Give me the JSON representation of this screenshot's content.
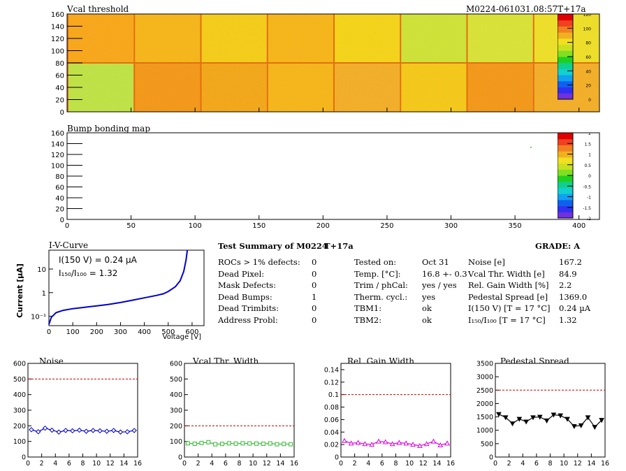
{
  "vcal_map": {
    "title": "Vcal threshold",
    "module_id": "M0224-061031.08:57T+17a",
    "xticks": [
      "0",
      "50",
      "100",
      "150",
      "200",
      "250",
      "300",
      "350",
      "400"
    ],
    "yticks": [
      "0",
      "20",
      "40",
      "60",
      "80",
      "100",
      "120",
      "140",
      "160"
    ],
    "zticks": [
      "0",
      "20",
      "40",
      "60",
      "80",
      "100",
      "120"
    ]
  },
  "bump_map": {
    "title": "Bump bonding map",
    "xticks": [
      "0",
      "50",
      "100",
      "150",
      "200",
      "250",
      "300",
      "350",
      "400"
    ],
    "yticks": [
      "0",
      "20",
      "40",
      "60",
      "80",
      "100",
      "120",
      "140",
      "160"
    ],
    "zticks": [
      "-2",
      "-1.5",
      "-1",
      "-0.5",
      "0",
      "0.5",
      "1",
      "1.5",
      "2"
    ]
  },
  "iv_curve": {
    "title": "I-V-Curve",
    "ylabel": "Current [µA]",
    "xlabel": "Voltage [V]",
    "xticks": [
      "0",
      "100",
      "200",
      "300",
      "400",
      "500",
      "600"
    ],
    "yticks": [
      "10⁻¹",
      "1",
      "10"
    ],
    "annotation1": "I(150 V) = 0.24 µA",
    "annotation2": "I₁₅₀/I₁₀₀ = 1.32"
  },
  "summary": {
    "header": "Test Summary of M0224",
    "tag": "T+17a",
    "grade": "GRADE:  A",
    "defects": [
      {
        "label": "ROCs > 1% defects:",
        "value": "0"
      },
      {
        "label": "Dead Pixel:",
        "value": "0"
      },
      {
        "label": "Mask Defects:",
        "value": "0"
      },
      {
        "label": "Dead Bumps:",
        "value": "1"
      },
      {
        "label": "Dead Trimbits:",
        "value": "0"
      },
      {
        "label": "Address Probl:",
        "value": "0"
      }
    ],
    "tests": [
      {
        "label": "Tested on:",
        "value": "Oct 31"
      },
      {
        "label": "Temp. [°C]:",
        "value": "16.8 +- 0.3"
      },
      {
        "label": "Trim / phCal:",
        "value": "yes / yes"
      },
      {
        "label": "Therm. cycl.:",
        "value": "yes"
      },
      {
        "label": "TBM1:",
        "value": "ok"
      },
      {
        "label": "TBM2:",
        "value": "ok"
      }
    ],
    "results": [
      {
        "label": "Noise [e]",
        "value": "167.2"
      },
      {
        "label": "Vcal Thr. Width [e]",
        "value": "84.9"
      },
      {
        "label": "Rel. Gain Width [%]",
        "value": "2.2"
      },
      {
        "label": "Pedestal Spread [e]",
        "value": "1369.0"
      },
      {
        "label": "I(150 V) [T = 17 °C]",
        "value": "0.24 µA"
      },
      {
        "label": "I₁₅₀/I₁₀₀  [T = 17 °C]",
        "value": "1.32"
      }
    ]
  },
  "colors": {
    "noise": "#0000cc",
    "vcal": "#33bb33",
    "gain": "#dd00dd",
    "pedestal": "#000000",
    "limit": "#cc0000",
    "iv": "#0000cc"
  },
  "chart_data": [
    {
      "type": "line",
      "title": "Noise",
      "x": [
        0,
        1,
        2,
        3,
        4,
        5,
        6,
        7,
        8,
        9,
        10,
        11,
        12,
        13,
        14,
        15
      ],
      "series": [
        {
          "values": [
            175,
            162,
            185,
            172,
            160,
            170,
            168,
            172,
            165,
            170,
            168,
            165,
            170,
            160,
            162,
            170
          ]
        }
      ],
      "limit": 500,
      "xlim": [
        0,
        16
      ],
      "ylim": [
        0,
        600
      ],
      "yticks": [
        0,
        100,
        200,
        300,
        400,
        500,
        600
      ],
      "xticks": [
        0,
        2,
        4,
        6,
        8,
        10,
        12,
        14,
        16
      ],
      "marker": "diamond"
    },
    {
      "type": "line",
      "title": "Vcal Thr. Width",
      "x": [
        0,
        1,
        2,
        3,
        4,
        5,
        6,
        7,
        8,
        9,
        10,
        11,
        12,
        13,
        14,
        15
      ],
      "series": [
        {
          "values": [
            88,
            85,
            90,
            95,
            82,
            84,
            88,
            86,
            88,
            87,
            86,
            85,
            87,
            82,
            84,
            82
          ]
        }
      ],
      "limit": 200,
      "xlim": [
        0,
        16
      ],
      "ylim": [
        0,
        600
      ],
      "yticks": [
        0,
        100,
        200,
        300,
        400,
        500,
        600
      ],
      "xticks": [
        0,
        2,
        4,
        6,
        8,
        10,
        12,
        14,
        16
      ],
      "marker": "square"
    },
    {
      "type": "line",
      "title": "Rel. Gain Width",
      "x": [
        0,
        1,
        2,
        3,
        4,
        5,
        6,
        7,
        8,
        9,
        10,
        11,
        12,
        13,
        14,
        15
      ],
      "series": [
        {
          "values": [
            0.026,
            0.022,
            0.023,
            0.021,
            0.02,
            0.025,
            0.024,
            0.021,
            0.023,
            0.022,
            0.02,
            0.018,
            0.021,
            0.025,
            0.019,
            0.022
          ]
        }
      ],
      "limit": 0.1,
      "xlim": [
        0,
        16
      ],
      "ylim": [
        0,
        0.15
      ],
      "yticks": [
        0,
        0.02,
        0.04,
        0.06,
        0.08,
        0.1,
        0.12,
        0.14
      ],
      "xticks": [
        0,
        2,
        4,
        6,
        8,
        10,
        12,
        14,
        16
      ],
      "marker": "triangle"
    },
    {
      "type": "line",
      "title": "Pedestal Spread",
      "x": [
        0,
        1,
        2,
        3,
        4,
        5,
        6,
        7,
        8,
        9,
        10,
        11,
        12,
        13,
        14,
        15
      ],
      "series": [
        {
          "values": [
            1600,
            1480,
            1250,
            1420,
            1320,
            1480,
            1500,
            1360,
            1580,
            1550,
            1420,
            1150,
            1180,
            1480,
            1120,
            1380
          ]
        }
      ],
      "limit": 2500,
      "xlim": [
        0,
        16
      ],
      "ylim": [
        0,
        3500
      ],
      "yticks": [
        0,
        500,
        1000,
        1500,
        2000,
        2500,
        3000,
        3500
      ],
      "xticks": [
        0,
        2,
        4,
        6,
        8,
        10,
        12,
        14,
        16
      ],
      "marker": "triangle-down"
    }
  ]
}
